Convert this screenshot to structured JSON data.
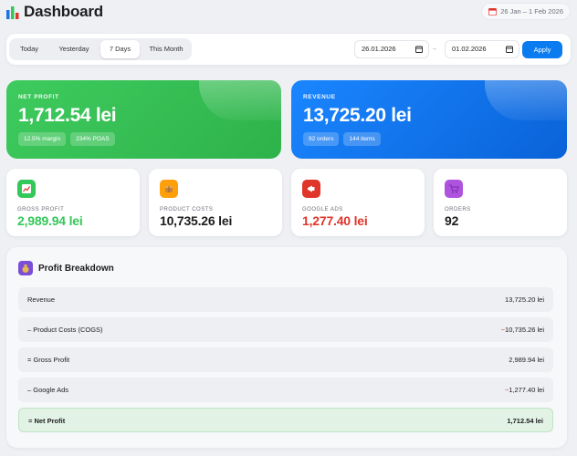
{
  "header": {
    "title": "Dashboard",
    "date_range": "26 Jan – 1 Feb 2026"
  },
  "filters": {
    "tabs": [
      {
        "label": "Today",
        "active": false
      },
      {
        "label": "Yesterday",
        "active": false
      },
      {
        "label": "7 Days",
        "active": true
      },
      {
        "label": "This Month",
        "active": false
      }
    ],
    "date_from": "26.01.2026",
    "date_to": "01.02.2026",
    "arrow": "→",
    "apply_label": "Apply"
  },
  "hero": {
    "net_profit": {
      "label": "NET PROFIT",
      "value": "1,712.54 lei",
      "chips": [
        "12.5% margin",
        "234% POAS"
      ]
    },
    "revenue": {
      "label": "REVENUE",
      "value": "13,725.20 lei",
      "chips": [
        "92 orders",
        "144 items"
      ]
    }
  },
  "metrics": [
    {
      "label": "GROSS PROFIT",
      "value": "2,989.94 lei",
      "icon": "chart-up-icon",
      "color": "#34c759"
    },
    {
      "label": "PRODUCT COSTS",
      "value": "10,735.26 lei",
      "icon": "package-icon",
      "color": "#1d1d1f"
    },
    {
      "label": "GOOGLE ADS",
      "value": "1,277.40 lei",
      "icon": "megaphone-icon",
      "color": "#e0352b"
    },
    {
      "label": "ORDERS",
      "value": "92",
      "icon": "cart-icon",
      "color": "#1d1d1f"
    }
  ],
  "breakdown": {
    "title": "Profit Breakdown",
    "rows": [
      {
        "label": "Revenue",
        "value": "13,725.20 lei",
        "sign": ""
      },
      {
        "label": "– Product Costs (COGS)",
        "value": "10,735.26 lei",
        "sign": "−"
      },
      {
        "label": "= Gross Profit",
        "value": "2,989.94 lei",
        "sign": ""
      },
      {
        "label": "– Google Ads",
        "value": "1,277.40 lei",
        "sign": "−"
      },
      {
        "label": "= Net Profit",
        "value": "1,712.54 lei",
        "sign": ""
      }
    ]
  },
  "colors": {
    "accent": "#0a7cf0",
    "profit_green": "#34c759",
    "cost_red": "#e0352b"
  }
}
